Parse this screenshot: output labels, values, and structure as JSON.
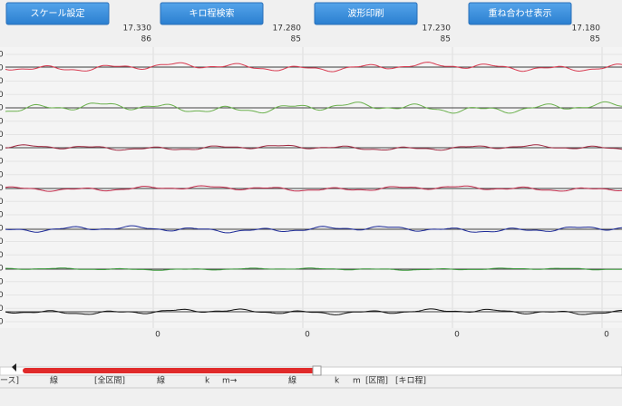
{
  "toolbar": {
    "buttons": [
      "スケール設定",
      "キロ程検索",
      "波形印刷",
      "重ね合わせ表示"
    ]
  },
  "columns": [
    {
      "km": "17.330",
      "value": "86"
    },
    {
      "km": "17.280",
      "value": "85"
    },
    {
      "km": "17.230",
      "value": "85"
    },
    {
      "km": "17.180",
      "value": "85"
    }
  ],
  "left_labels": [
    "0",
    "0",
    "0",
    "0",
    "0",
    "0",
    "0",
    "0",
    "0",
    "0",
    "0",
    "0",
    "0",
    "0",
    "0",
    "0",
    "0",
    "0",
    "0",
    "0",
    "0"
  ],
  "bottom_labels": [
    "0",
    "0",
    "0",
    "0"
  ],
  "status_bar": {
    "items": [
      "ース]",
      "線",
      "[全区間]",
      "線",
      "k",
      "m→",
      "線",
      "k",
      "m",
      "[区間]",
      "[キロ程]"
    ]
  }
}
